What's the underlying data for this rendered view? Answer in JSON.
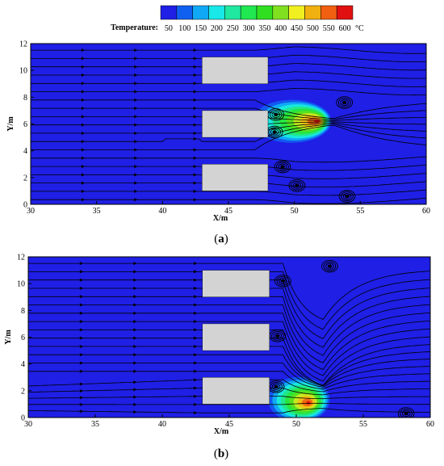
{
  "colorbar": {
    "title": "Temperature:",
    "unit": "°C",
    "labels": [
      "50",
      "100",
      "150",
      "200",
      "250",
      "300",
      "350",
      "400",
      "450",
      "500",
      "550",
      "600"
    ],
    "colors": [
      "#1f1fe6",
      "#1060f0",
      "#10a8f5",
      "#18e8e8",
      "#20e8a0",
      "#20e850",
      "#30e020",
      "#80e020",
      "#f0f020",
      "#f0b010",
      "#f06010",
      "#e01010"
    ]
  },
  "background_color": "#1f1fe6",
  "obstacle_color": "#d3d3d3",
  "chart_data": [
    {
      "type": "heatmap",
      "panel_label": "(a)",
      "panel_letter": "a",
      "xlabel": "X/m",
      "ylabel": "Y/m",
      "xlim": [
        30,
        60
      ],
      "ylim": [
        0,
        12
      ],
      "xticks": [
        "30",
        "35",
        "40",
        "45",
        "50",
        "55",
        "60"
      ],
      "yticks": [
        "0",
        "2",
        "4",
        "6",
        "8",
        "10",
        "12"
      ],
      "obstacles": [
        {
          "x0": 43,
          "x1": 48,
          "y0": 9,
          "y1": 11
        },
        {
          "x0": 43,
          "x1": 48,
          "y0": 5,
          "y1": 7
        },
        {
          "x0": 43,
          "x1": 48,
          "y0": 1,
          "y1": 3
        }
      ],
      "hotspot": {
        "x": 51.7,
        "y": 6.2,
        "peak_temperature": 600
      },
      "plume_region": {
        "x_min": 48,
        "x_max": 54,
        "y_min": 4.6,
        "y_max": 7.8
      },
      "vortices": [
        {
          "x": 48.6,
          "y": 6.7
        },
        {
          "x": 48.5,
          "y": 5.4
        },
        {
          "x": 53.8,
          "y": 7.6
        },
        {
          "x": 49.1,
          "y": 2.8
        },
        {
          "x": 50.2,
          "y": 1.4
        },
        {
          "x": 54.0,
          "y": 0.6
        }
      ]
    },
    {
      "type": "heatmap",
      "panel_label": "(b)",
      "panel_letter": "b",
      "xlabel": "X/m",
      "ylabel": "Y/m",
      "xlim": [
        30,
        60
      ],
      "ylim": [
        0,
        12
      ],
      "xticks": [
        "30",
        "35",
        "40",
        "45",
        "50",
        "55",
        "60"
      ],
      "yticks": [
        "0",
        "2",
        "4",
        "6",
        "8",
        "10",
        "12"
      ],
      "obstacles": [
        {
          "x0": 43,
          "x1": 48,
          "y0": 9,
          "y1": 11
        },
        {
          "x0": 43,
          "x1": 48,
          "y0": 5,
          "y1": 7
        },
        {
          "x0": 43,
          "x1": 48,
          "y0": 1,
          "y1": 3
        }
      ],
      "hotspot": {
        "x": 50.9,
        "y": 1.1,
        "peak_temperature": 600
      },
      "plume_region": {
        "x_min": 48,
        "x_max": 52.6,
        "y_min": 0,
        "y_max": 3.2
      },
      "vortices": [
        {
          "x": 52.5,
          "y": 11.3
        },
        {
          "x": 49.0,
          "y": 10.2
        },
        {
          "x": 48.6,
          "y": 6.1
        },
        {
          "x": 48.5,
          "y": 2.3
        },
        {
          "x": 58.2,
          "y": 0.3
        }
      ]
    }
  ]
}
